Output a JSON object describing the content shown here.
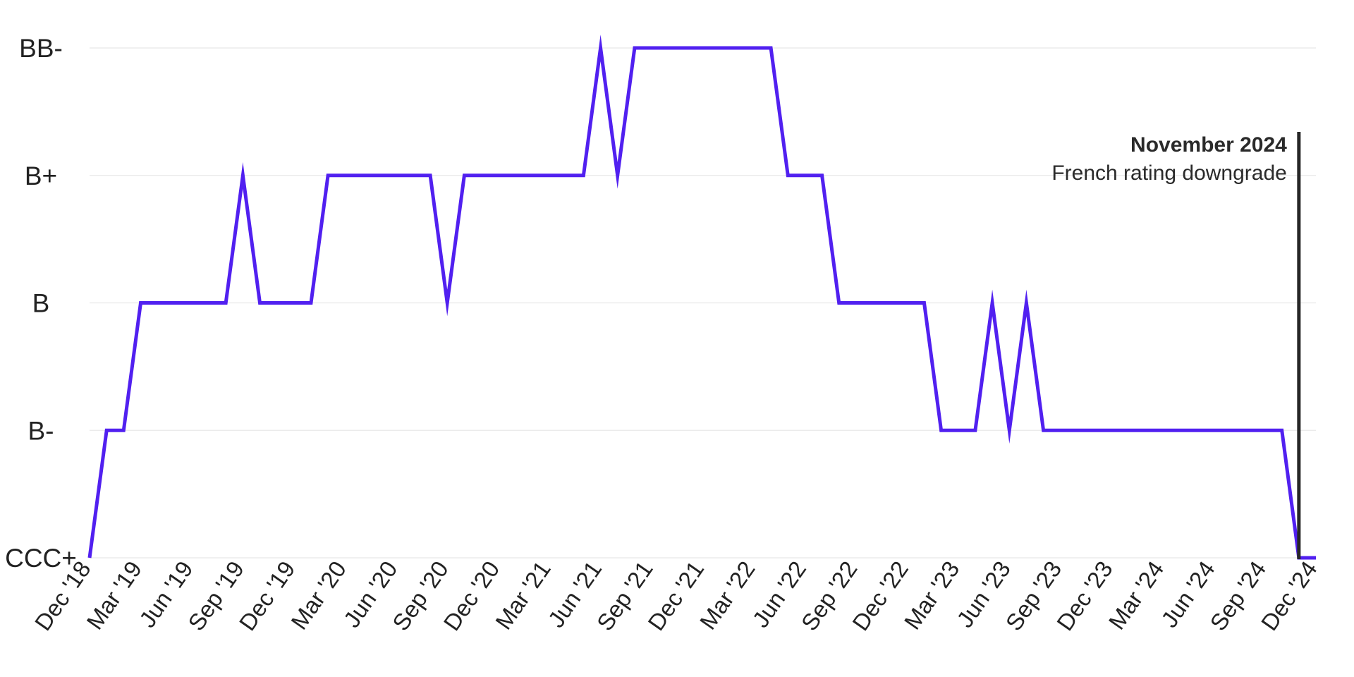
{
  "chart_data": {
    "type": "line",
    "title": "",
    "xlabel": "",
    "ylabel": "",
    "y_levels": [
      "CCC+",
      "B-",
      "B",
      "B+",
      "BB-"
    ],
    "x_ticks": [
      "Dec '18",
      "Mar '19",
      "Jun '19",
      "Sep '19",
      "Dec '19",
      "Mar '20",
      "Jun '20",
      "Sep '20",
      "Dec '20",
      "Mar '21",
      "Jun '21",
      "Sep '21",
      "Dec '21",
      "Mar '22",
      "Jun '22",
      "Sep '22",
      "Dec '22",
      "Mar '23",
      "Jun '23",
      "Sep '23",
      "Dec '23",
      "Mar '24",
      "Jun '24",
      "Sep '24",
      "Dec '24"
    ],
    "grid": true,
    "line_color": "#5120f0",
    "series": [
      {
        "x": [
          "2018-12",
          "2019-01",
          "2019-02",
          "2019-03",
          "2019-04",
          "2019-05",
          "2019-06",
          "2019-07",
          "2019-08",
          "2019-09",
          "2019-10",
          "2019-11",
          "2019-12",
          "2020-01",
          "2020-02",
          "2020-03",
          "2020-04",
          "2020-05",
          "2020-06",
          "2020-07",
          "2020-08",
          "2020-09",
          "2020-10",
          "2020-11",
          "2020-12",
          "2021-01",
          "2021-02",
          "2021-03",
          "2021-04",
          "2021-05",
          "2021-06",
          "2021-07",
          "2021-08",
          "2021-09",
          "2021-10",
          "2021-11",
          "2021-12",
          "2022-01",
          "2022-02",
          "2022-03",
          "2022-04",
          "2022-05",
          "2022-06",
          "2022-07",
          "2022-08",
          "2022-09",
          "2022-10",
          "2022-11",
          "2022-12",
          "2023-01",
          "2023-02",
          "2023-03",
          "2023-04",
          "2023-05",
          "2023-06",
          "2023-07",
          "2023-08",
          "2023-09",
          "2023-10",
          "2023-11",
          "2023-12",
          "2024-01",
          "2024-02",
          "2024-03",
          "2024-04",
          "2024-05",
          "2024-06",
          "2024-07",
          "2024-08",
          "2024-09",
          "2024-10",
          "2024-11",
          "2024-12"
        ],
        "values": [
          "CCC+",
          "B-",
          "B-",
          "B",
          "B",
          "B",
          "B",
          "B",
          "B",
          "B+",
          "B",
          "B",
          "B",
          "B",
          "B+",
          "B+",
          "B+",
          "B+",
          "B+",
          "B+",
          "B+",
          "B",
          "B+",
          "B+",
          "B+",
          "B+",
          "B+",
          "B+",
          "B+",
          "B+",
          "BB-",
          "B+",
          "BB-",
          "BB-",
          "BB-",
          "BB-",
          "BB-",
          "BB-",
          "BB-",
          "BB-",
          "BB-",
          "B+",
          "B+",
          "B+",
          "B",
          "B",
          "B",
          "B",
          "B",
          "B",
          "B-",
          "B-",
          "B-",
          "B",
          "B-",
          "B",
          "B-",
          "B-",
          "B-",
          "B-",
          "B-",
          "B-",
          "B-",
          "B-",
          "B-",
          "B-",
          "B-",
          "B-",
          "B-",
          "B-",
          "B-",
          "CCC+",
          "CCC+"
        ]
      }
    ],
    "annotation": {
      "x": "2024-11",
      "title": "November 2024",
      "text": "French rating downgrade",
      "line_color": "#262626"
    }
  }
}
